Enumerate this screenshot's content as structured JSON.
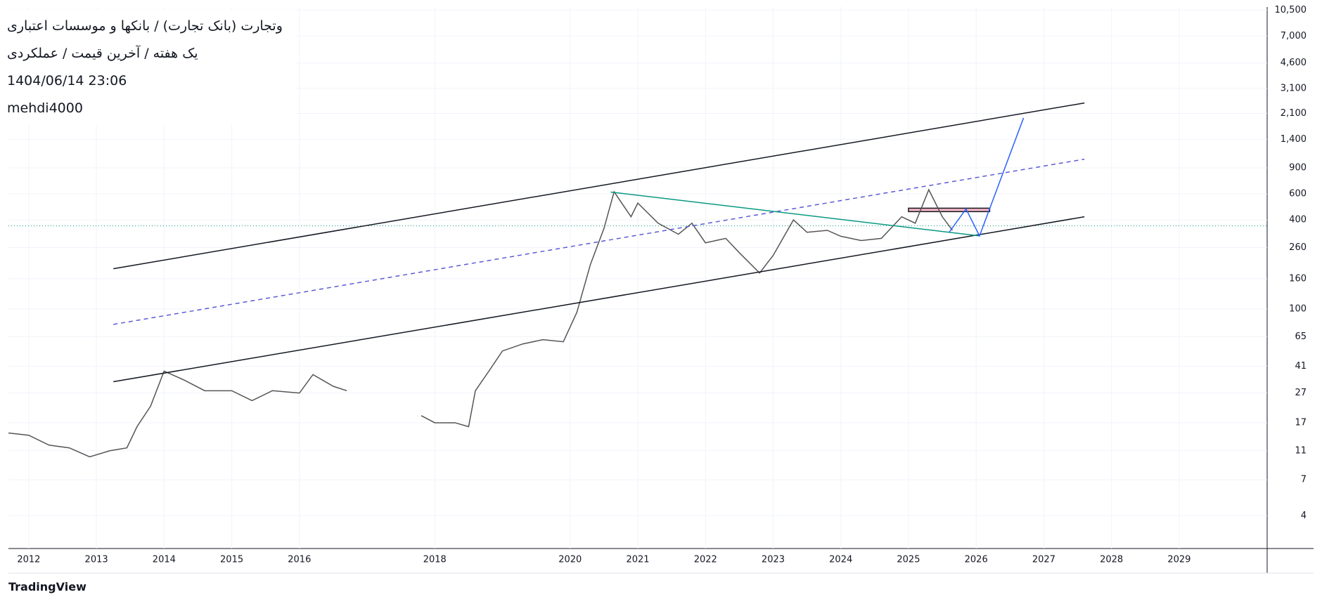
{
  "chart_data": {
    "type": "line",
    "title": "وتجارت (بانک تجارت) / بانکها و موسسات اعتباری",
    "subtitle": "یک هفته / آخرین قیمت / عملکردی",
    "timestamp": "1404/06/14 23:06",
    "author": "mehdi4000",
    "watermark": "TradingView",
    "log_scale": true,
    "grid": true,
    "series": [
      {
        "color": "#555555",
        "x": [
          2011.7,
          2012.0,
          2012.3,
          2012.6,
          2012.9,
          2013.2,
          2013.45,
          2013.6,
          2013.8,
          2014.0,
          2014.3,
          2014.6,
          2015.0,
          2015.3,
          2015.6,
          2016.0,
          2016.2,
          2016.5,
          2016.7,
          2017.3,
          2017.8,
          2018.0,
          2018.3,
          2018.5,
          2018.6,
          2018.8,
          2019.0,
          2019.3,
          2019.6,
          2019.9,
          2020.1,
          2020.3,
          2020.5,
          2020.65,
          2020.9,
          2021.0,
          2021.3,
          2021.6,
          2021.8,
          2022.0,
          2022.3,
          2022.5,
          2022.8,
          2023.0,
          2023.3,
          2023.5,
          2023.8,
          2024.0,
          2024.3,
          2024.6,
          2024.9,
          2025.1,
          2025.3,
          2025.5,
          2025.65
        ],
        "values": [
          14.5,
          14,
          12,
          11.5,
          10,
          11,
          11.5,
          16,
          22,
          38,
          33,
          28,
          28,
          24,
          28,
          27,
          36,
          30,
          28,
          null,
          19,
          17,
          17,
          16,
          28,
          38,
          52,
          58,
          62,
          60,
          95,
          200,
          350,
          620,
          420,
          520,
          380,
          320,
          380,
          280,
          300,
          240,
          175,
          230,
          400,
          330,
          340,
          310,
          290,
          300,
          420,
          380,
          640,
          420,
          340
        ]
      }
    ],
    "xlim": [
      2011.7,
      2030.3
    ],
    "xticks": [
      2012,
      2013,
      2014,
      2015,
      2016,
      2018,
      2020,
      2021,
      2022,
      2023,
      2024,
      2025,
      2026,
      2027,
      2028,
      2029
    ],
    "ylim": [
      2.4,
      11000
    ],
    "yticks": [
      4,
      7,
      11,
      17,
      27,
      41,
      65,
      100,
      160,
      260,
      400,
      600,
      900,
      {
        "value": 1400,
        "label": "1,400"
      },
      {
        "value": 2100,
        "label": "2,100"
      },
      {
        "value": 3100,
        "label": "3,100"
      },
      {
        "value": 4600,
        "label": "4,600"
      },
      {
        "value": 7000,
        "label": "7,000"
      },
      {
        "value": 10500,
        "label": "10,500"
      }
    ],
    "drawings": [
      {
        "color": "#131722",
        "dashed": false,
        "points": [
          {
            "x": 2013.25,
            "y": 187
          },
          {
            "x": 2027.6,
            "y": 2470
          }
        ]
      },
      {
        "color": "#131722",
        "dashed": false,
        "points": [
          {
            "x": 2013.25,
            "y": 32.2
          },
          {
            "x": 2027.6,
            "y": 420
          }
        ]
      },
      {
        "color": "#5b5bd6",
        "dashed": true,
        "points": [
          {
            "x": 2013.25,
            "y": 78.6
          },
          {
            "x": 2027.6,
            "y": 1030
          }
        ]
      },
      {
        "color": "#089981",
        "dashed": false,
        "points": [
          {
            "x": 2020.6,
            "y": 617
          },
          {
            "x": 2026.05,
            "y": 312
          }
        ]
      },
      {
        "color": "#2962ff",
        "dashed": false,
        "points": [
          {
            "x": 2025.6,
            "y": 329
          },
          {
            "x": 2025.85,
            "y": 474
          },
          {
            "x": 2026.05,
            "y": 312
          },
          {
            "x": 2026.7,
            "y": 1956
          }
        ]
      }
    ],
    "zones": [
      {
        "color": "#f4b6c2",
        "x": [
          2025.0,
          2026.2
        ],
        "y": [
          455,
          480
        ]
      }
    ],
    "last_price": 365
  }
}
